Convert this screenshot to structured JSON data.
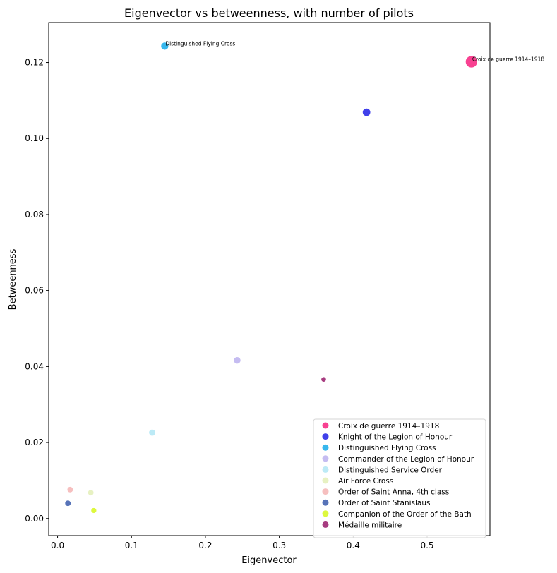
{
  "chart_data": {
    "type": "scatter",
    "title": "Eigenvector vs betweenness, with number of pilots",
    "xlabel": "Eigenvector",
    "ylabel": "Betweenness",
    "xlim": [
      -0.012,
      0.585
    ],
    "ylim": [
      -0.0045,
      0.1305
    ],
    "xticks": [
      "0.0",
      "0.1",
      "0.2",
      "0.3",
      "0.4",
      "0.5"
    ],
    "xtick_values": [
      0.0,
      0.1,
      0.2,
      0.3,
      0.4,
      0.5
    ],
    "yticks": [
      "0.00",
      "0.02",
      "0.04",
      "0.06",
      "0.08",
      "0.10",
      "0.12"
    ],
    "ytick_values": [
      0.0,
      0.02,
      0.04,
      0.06,
      0.08,
      0.1,
      0.12
    ],
    "grid": false,
    "legend_position": "lower-right",
    "points": [
      {
        "name": "Croix de guerre 1914–1918",
        "x": 0.56,
        "y": 0.1202,
        "pilots": 30,
        "color": "#f7207e",
        "annotation": "Croix de guerre 1914–1918"
      },
      {
        "name": "Knight of the Legion of Honour",
        "x": 0.418,
        "y": 0.1069,
        "pilots": 13,
        "color": "#1f1fe6",
        "annotation": ""
      },
      {
        "name": "Distinguished Flying Cross",
        "x": 0.145,
        "y": 0.1243,
        "pilots": 12,
        "color": "#14aaea",
        "annotation": "Distinguished Flying Cross"
      },
      {
        "name": "Commander of the Legion of Honour",
        "x": 0.243,
        "y": 0.0416,
        "pilots": 10,
        "color": "#bbb0ef",
        "annotation": ""
      },
      {
        "name": "Distinguished Service Order",
        "x": 0.128,
        "y": 0.0226,
        "pilots": 9,
        "color": "#b0e6f4",
        "annotation": ""
      },
      {
        "name": "Air Force Cross",
        "x": 0.045,
        "y": 0.0068,
        "pilots": 7,
        "color": "#e3efb7",
        "annotation": ""
      },
      {
        "name": "Order of Saint Anna, 4th class",
        "x": 0.017,
        "y": 0.0076,
        "pilots": 7,
        "color": "#f4b4b4",
        "annotation": ""
      },
      {
        "name": "Order of Saint Stanislaus",
        "x": 0.014,
        "y": 0.004,
        "pilots": 7,
        "color": "#3a5aac",
        "annotation": ""
      },
      {
        "name": "Companion of the Order of the Bath",
        "x": 0.049,
        "y": 0.0021,
        "pilots": 6,
        "color": "#d7f71b",
        "annotation": ""
      },
      {
        "name": "Médaille militaire",
        "x": 0.36,
        "y": 0.0366,
        "pilots": 5,
        "color": "#981a6a",
        "annotation": ""
      }
    ]
  }
}
